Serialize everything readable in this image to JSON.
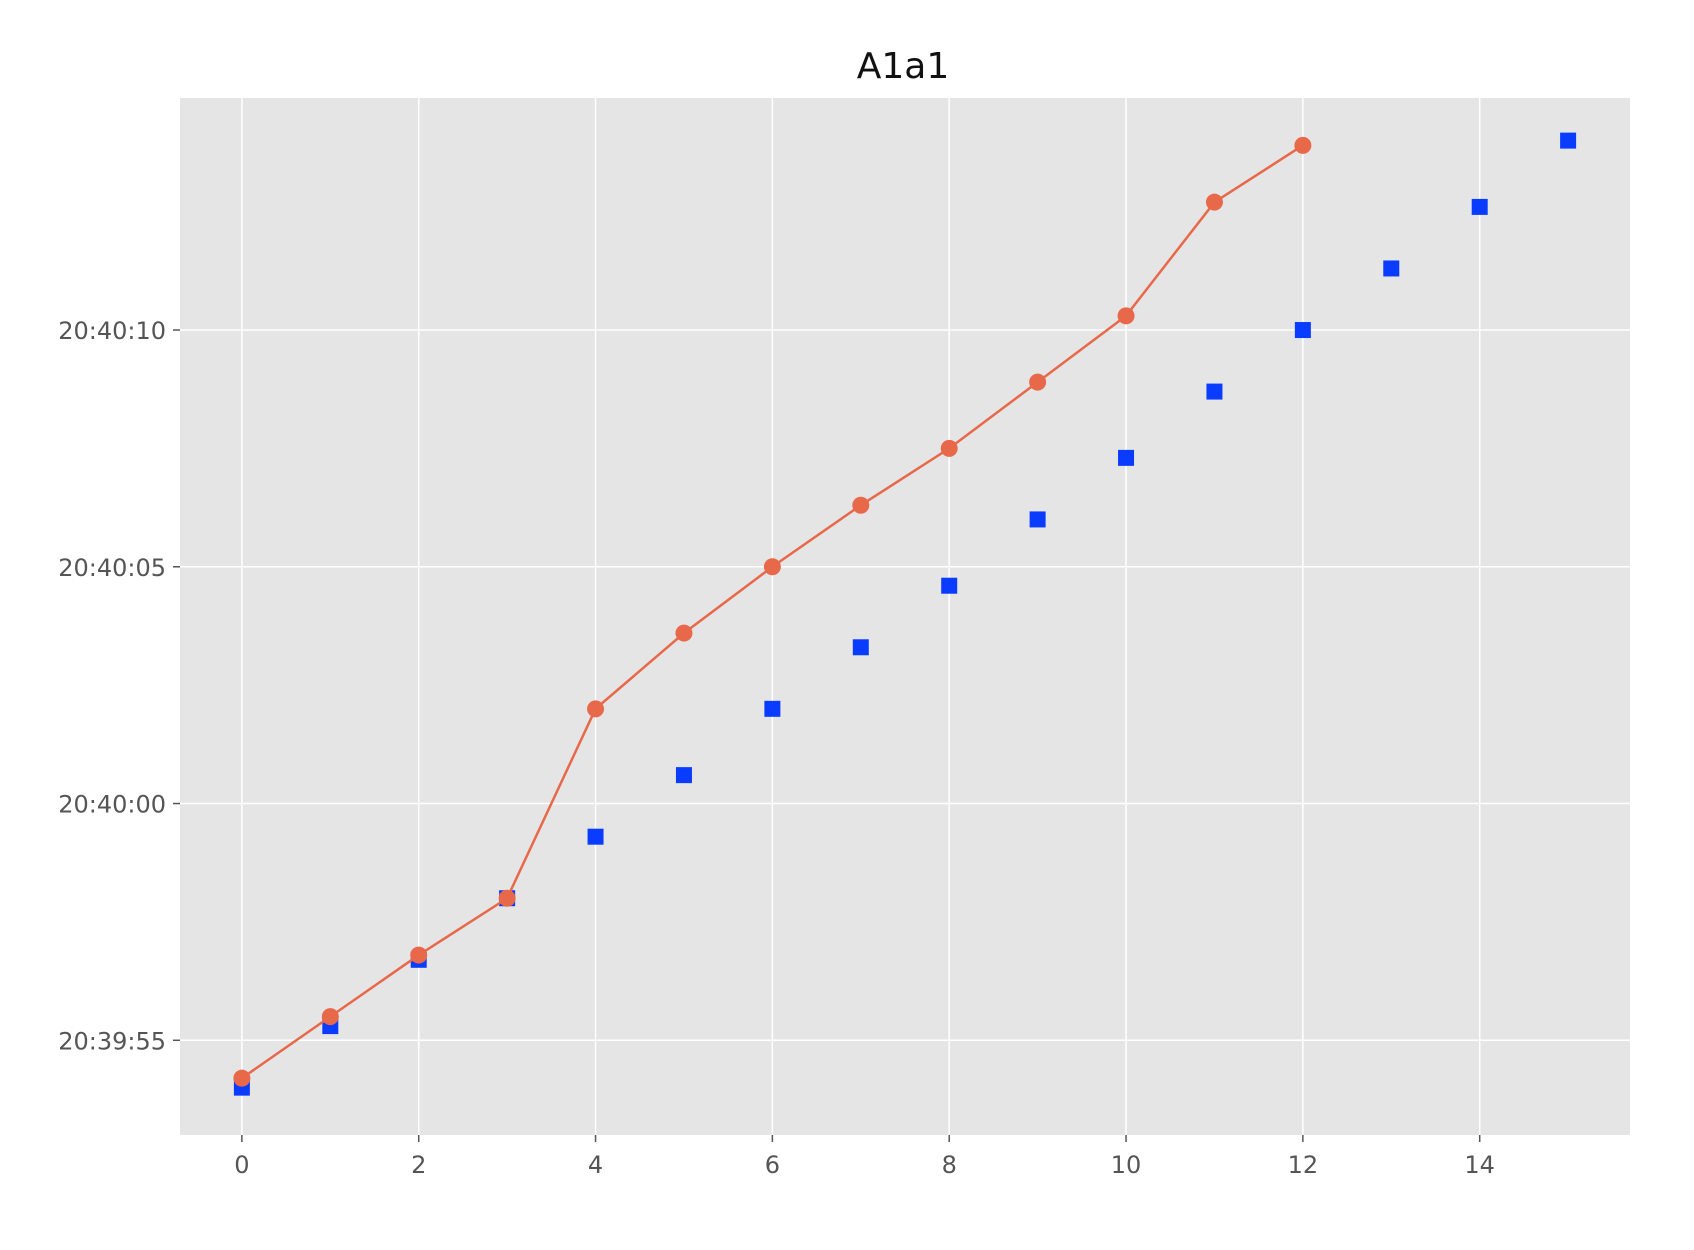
{
  "chart_data": {
    "type": "line",
    "title": "A1a1",
    "xlabel": "",
    "ylabel": "",
    "xlim": [
      -0.7,
      15.7
    ],
    "ylim": [
      "20:39:53.0",
      "20:40:14.9"
    ],
    "x_ticks": [
      0,
      2,
      4,
      6,
      8,
      10,
      12,
      14
    ],
    "y_ticks": [
      "20:39:55",
      "20:40:00",
      "20:40:05",
      "20:40:10"
    ],
    "grid": true,
    "legend": "none",
    "background": "#e5e5e5",
    "series": [
      {
        "marker": "square",
        "line": false,
        "color": "#0a3cff",
        "x": [
          0,
          1,
          2,
          3,
          4,
          5,
          6,
          7,
          8,
          9,
          10,
          11,
          12,
          13,
          14,
          15
        ],
        "y": [
          "20:39:54.0",
          "20:39:55.3",
          "20:39:56.7",
          "20:39:58.0",
          "20:39:59.3",
          "20:40:00.6",
          "20:40:02.0",
          "20:40:03.3",
          "20:40:04.6",
          "20:40:06.0",
          "20:40:07.3",
          "20:40:08.7",
          "20:40:10.0",
          "20:40:11.3",
          "20:40:12.6",
          "20:40:14.0"
        ]
      },
      {
        "marker": "circle",
        "line": true,
        "color": "#e8684a",
        "x": [
          0,
          1,
          2,
          3,
          4,
          5,
          6,
          7,
          8,
          9,
          10,
          11,
          12
        ],
        "y": [
          "20:39:54.2",
          "20:39:55.5",
          "20:39:56.8",
          "20:39:58.0",
          "20:40:02.0",
          "20:40:03.6",
          "20:40:05.0",
          "20:40:06.3",
          "20:40:07.5",
          "20:40:08.9",
          "20:40:10.3",
          "20:40:12.7",
          "20:40:13.9"
        ]
      }
    ]
  }
}
